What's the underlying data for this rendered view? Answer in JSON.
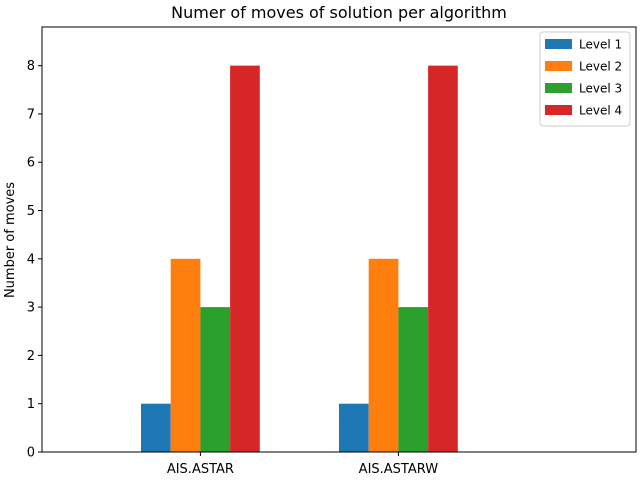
{
  "chart_data": {
    "type": "bar",
    "title": "Numer of moves of solution per algorithm",
    "xlabel": "",
    "ylabel": "Number of moves",
    "categories": [
      "AIS.ASTAR",
      "AIS.ASTARW"
    ],
    "series": [
      {
        "name": "Level 1",
        "values": [
          1,
          1
        ],
        "color": "#1f77b4"
      },
      {
        "name": "Level 2",
        "values": [
          4,
          4
        ],
        "color": "#ff7f0e"
      },
      {
        "name": "Level 3",
        "values": [
          3,
          3
        ],
        "color": "#2ca02c"
      },
      {
        "name": "Level 4",
        "values": [
          8,
          8
        ],
        "color": "#d62728"
      }
    ],
    "ylim": [
      0,
      8.8
    ],
    "yticks": [
      0,
      1,
      2,
      3,
      4,
      5,
      6,
      7,
      8
    ],
    "grid": false,
    "legend_position": "top-right"
  }
}
